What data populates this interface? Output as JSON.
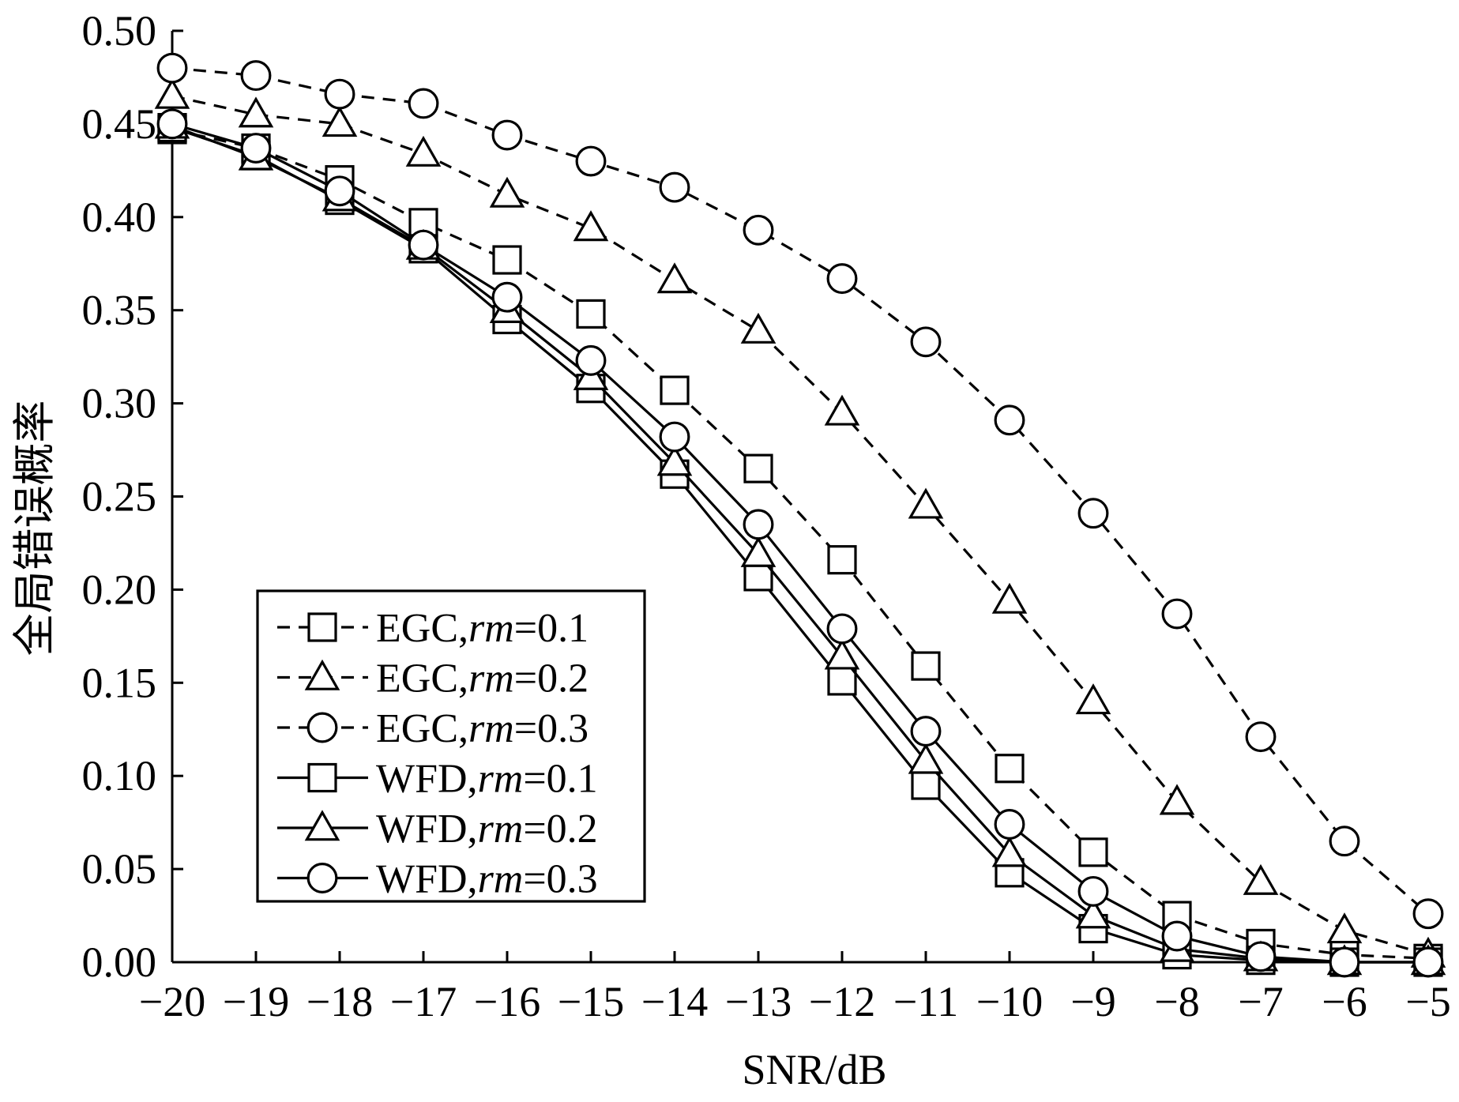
{
  "chart_data": {
    "type": "line",
    "xlabel": "SNR/dB",
    "ylabel": "全局错误概率",
    "xlim": [
      -20,
      -5
    ],
    "ylim": [
      0,
      0.5
    ],
    "x_ticks": [
      -20,
      -19,
      -18,
      -17,
      -16,
      -15,
      -14,
      -13,
      -12,
      -11,
      -10,
      -9,
      -8,
      -7,
      -6,
      -5
    ],
    "x_tick_labels": [
      "−20",
      "−19",
      "−18",
      "−17",
      "−16",
      "−15",
      "−14",
      "−13",
      "−12",
      "−11",
      "−10",
      "−9",
      "−8",
      "−7",
      "−6",
      "−5"
    ],
    "y_ticks": [
      0,
      0.05,
      0.1,
      0.15,
      0.2,
      0.25,
      0.3,
      0.35,
      0.4,
      0.45,
      0.5
    ],
    "y_tick_labels": [
      "0.00",
      "0.05",
      "0.10",
      "0.15",
      "0.20",
      "0.25",
      "0.30",
      "0.35",
      "0.40",
      "0.45",
      "0.50"
    ],
    "grid": false,
    "legend_position": "bottom-left",
    "x": [
      -20,
      -19,
      -18,
      -17,
      -16,
      -15,
      -14,
      -13,
      -12,
      -11,
      -10,
      -9,
      -8,
      -7,
      -6,
      -5
    ],
    "series": [
      {
        "label_prefix": "EGC,",
        "label_var": "rm",
        "label_value": "=0.1",
        "line": "dashed",
        "marker": "square",
        "values": [
          0.447,
          0.437,
          0.42,
          0.397,
          0.377,
          0.348,
          0.307,
          0.265,
          0.216,
          0.159,
          0.104,
          0.059,
          0.025,
          0.01,
          0.004,
          0.002
        ]
      },
      {
        "label_prefix": "EGC,",
        "label_var": "rm",
        "label_value": "=0.2",
        "line": "dashed",
        "marker": "triangle",
        "values": [
          0.465,
          0.455,
          0.45,
          0.434,
          0.412,
          0.394,
          0.366,
          0.339,
          0.295,
          0.245,
          0.194,
          0.14,
          0.086,
          0.043,
          0.017,
          0.004
        ]
      },
      {
        "label_prefix": "EGC,",
        "label_var": "rm",
        "label_value": "=0.3",
        "line": "dashed",
        "marker": "circle",
        "values": [
          0.48,
          0.476,
          0.466,
          0.461,
          0.444,
          0.43,
          0.416,
          0.393,
          0.367,
          0.333,
          0.291,
          0.241,
          0.187,
          0.121,
          0.065,
          0.026
        ]
      },
      {
        "label_prefix": "WFD,",
        "label_var": "rm",
        "label_value": "=0.1",
        "line": "solid",
        "marker": "square",
        "values": [
          0.448,
          0.433,
          0.409,
          0.383,
          0.345,
          0.308,
          0.262,
          0.207,
          0.151,
          0.095,
          0.048,
          0.018,
          0.004,
          0.001,
          0.0,
          0.0
        ]
      },
      {
        "label_prefix": "WFD,",
        "label_var": "rm",
        "label_value": "=0.2",
        "line": "solid",
        "marker": "triangle",
        "values": [
          0.449,
          0.432,
          0.41,
          0.384,
          0.35,
          0.314,
          0.268,
          0.219,
          0.164,
          0.108,
          0.058,
          0.025,
          0.007,
          0.002,
          0.0,
          0.0
        ]
      },
      {
        "label_prefix": "WFD,",
        "label_var": "rm",
        "label_value": "=0.3",
        "line": "solid",
        "marker": "circle",
        "values": [
          0.45,
          0.437,
          0.414,
          0.385,
          0.357,
          0.323,
          0.282,
          0.235,
          0.179,
          0.124,
          0.074,
          0.038,
          0.014,
          0.003,
          0.0,
          0.0
        ]
      }
    ]
  }
}
